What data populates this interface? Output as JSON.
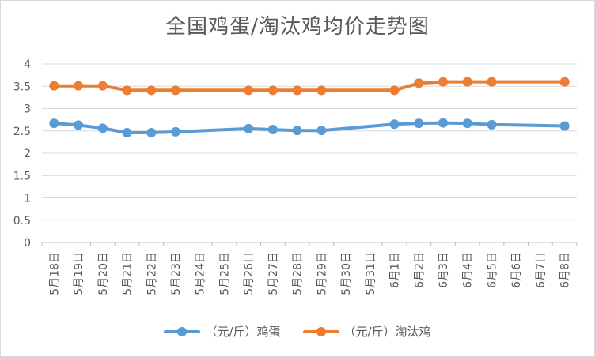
{
  "chart_data": {
    "type": "line",
    "title": "全国鸡蛋/淘汰鸡均价走势图",
    "xlabel": "",
    "ylabel": "",
    "categories": [
      "5月18日",
      "5月19日",
      "5月20日",
      "5月21日",
      "5月22日",
      "5月23日",
      "5月24日",
      "5月25日",
      "5月26日",
      "5月27日",
      "5月28日",
      "5月29日",
      "5月30日",
      "5月31日",
      "6月1日",
      "6月2日",
      "6月3日",
      "6月4日",
      "6月5日",
      "6月6日",
      "6月7日",
      "6月8日"
    ],
    "ylim": [
      0,
      4
    ],
    "yticks": [
      "0",
      "0.5",
      "1",
      "1.5",
      "2",
      "2.5",
      "3",
      "3.5",
      "4"
    ],
    "grid": true,
    "legend_position": "bottom",
    "series": [
      {
        "name": "（元/斤）鸡蛋",
        "color": "#5b9bd5",
        "values": [
          2.67,
          2.63,
          2.56,
          2.46,
          2.46,
          2.48,
          null,
          null,
          2.55,
          2.53,
          2.51,
          2.51,
          null,
          null,
          2.65,
          2.67,
          2.68,
          2.67,
          2.64,
          null,
          null,
          2.61
        ]
      },
      {
        "name": "（元/斤）淘汰鸡",
        "color": "#ed7d31",
        "values": [
          3.51,
          3.51,
          3.51,
          3.41,
          3.41,
          3.41,
          null,
          null,
          3.41,
          3.41,
          3.41,
          3.41,
          null,
          null,
          3.41,
          3.57,
          3.6,
          3.6,
          3.6,
          null,
          null,
          3.6
        ]
      }
    ]
  }
}
